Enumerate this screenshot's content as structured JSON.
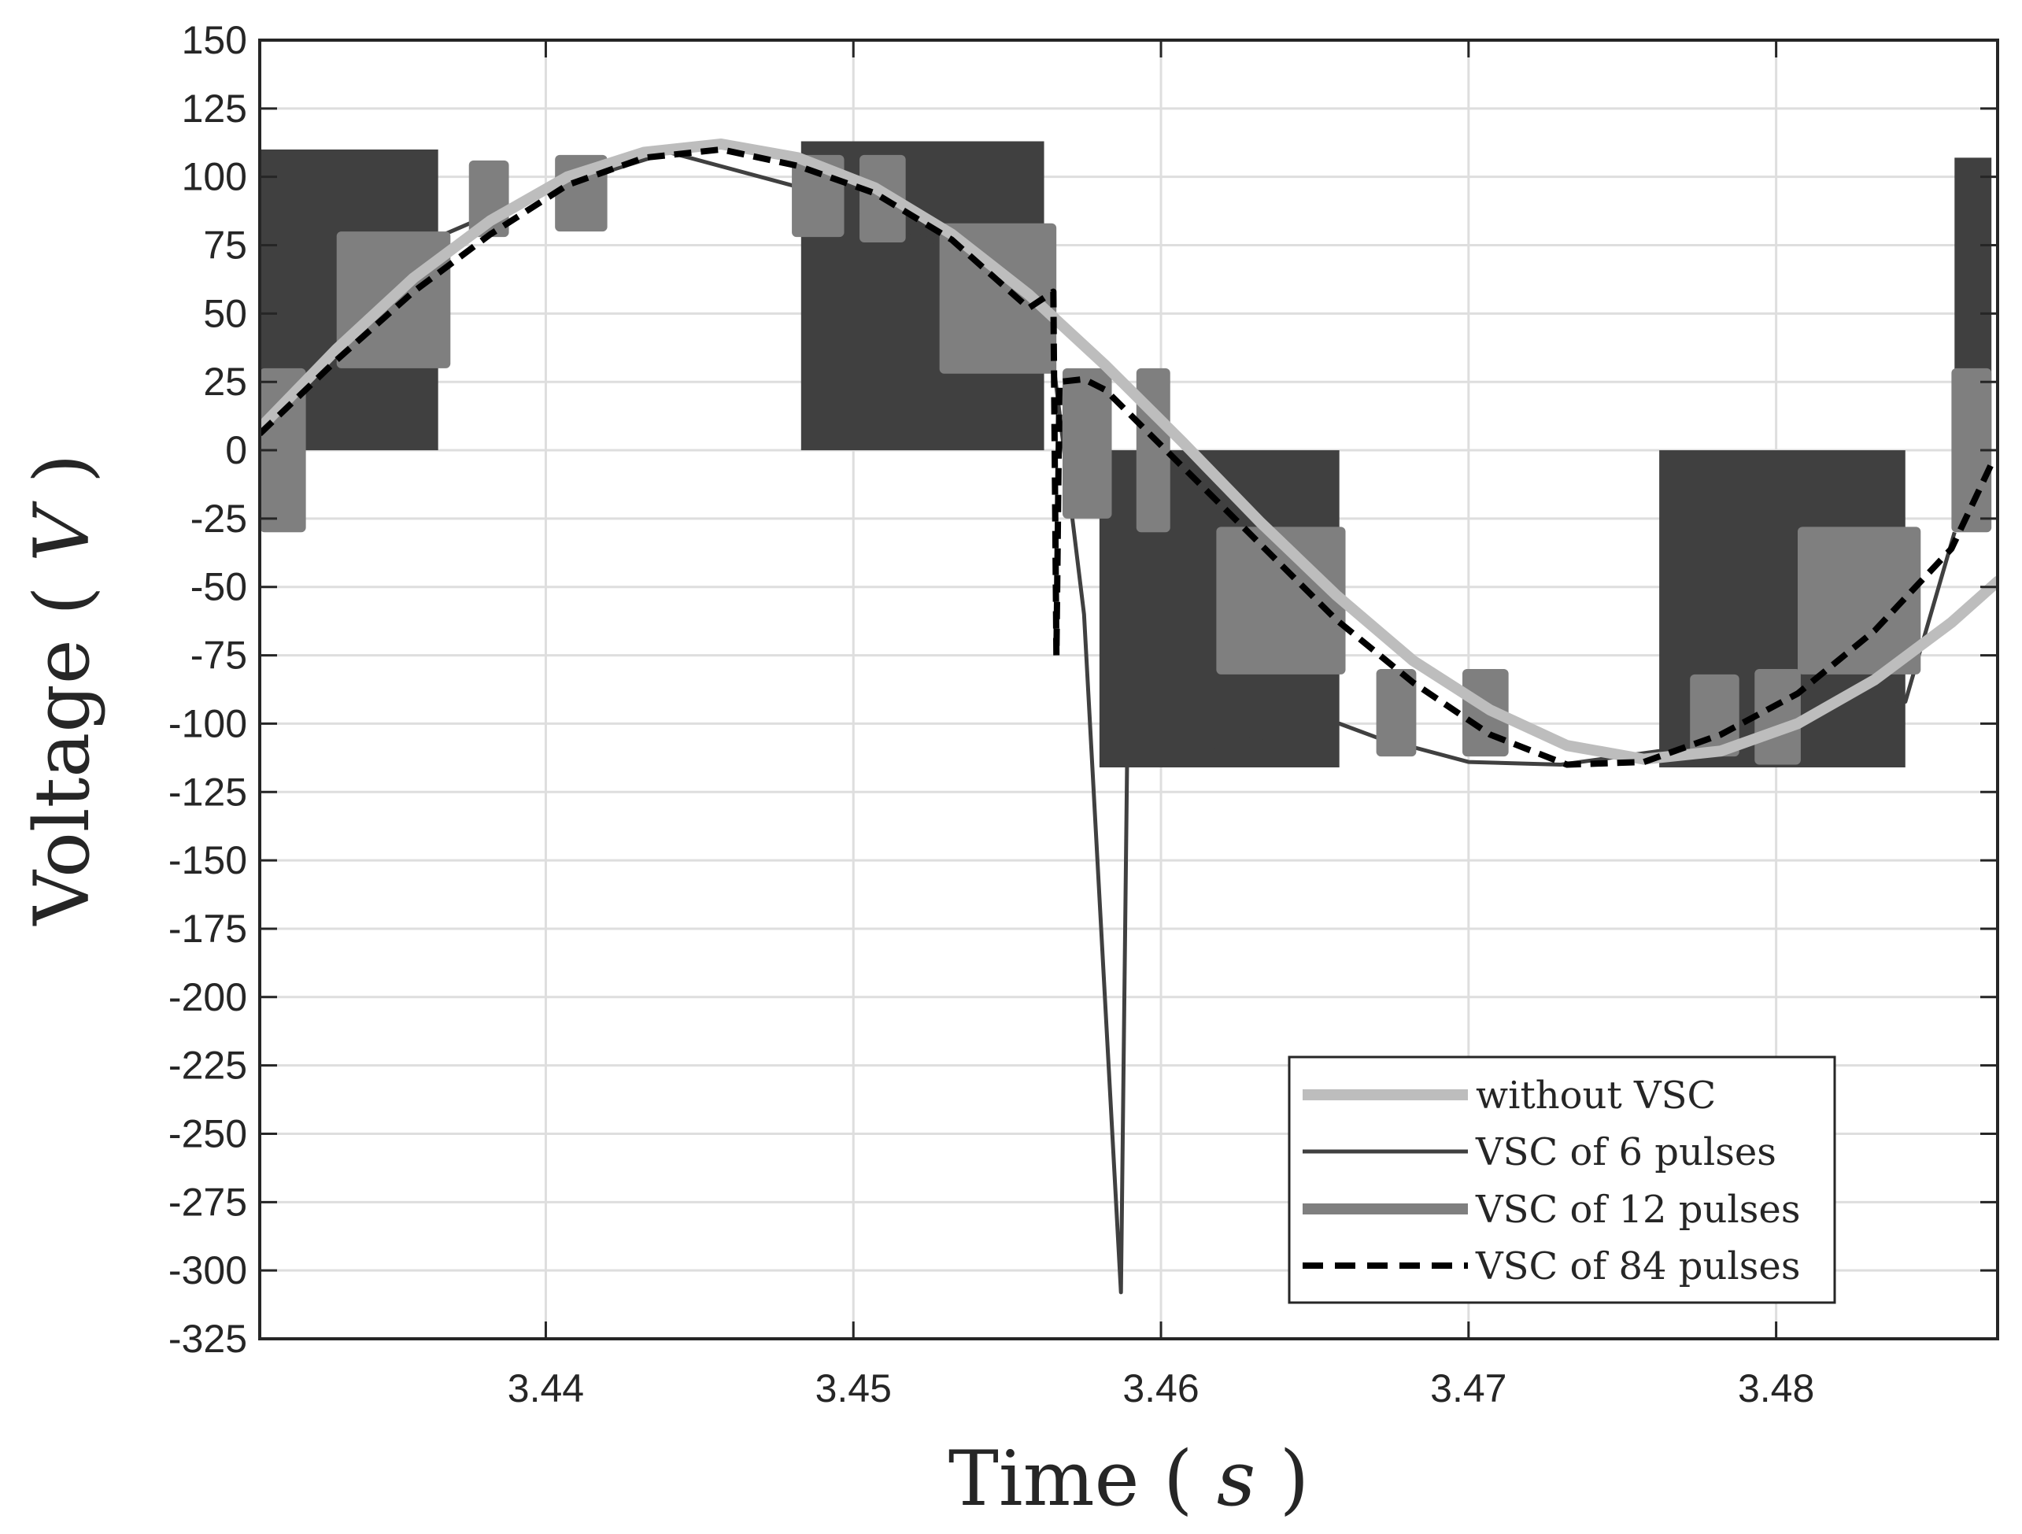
{
  "chart_data": {
    "type": "line",
    "xlabel": "Time",
    "xlabel_var": "s",
    "ylabel": "Voltage",
    "ylabel_var": "V",
    "xlim": [
      3.4307,
      3.4872
    ],
    "ylim": [
      -325,
      150
    ],
    "xticks": [
      3.44,
      3.45,
      3.46,
      3.47,
      3.48
    ],
    "xtick_labels": [
      "3.44",
      "3.45",
      "3.46",
      "3.47",
      "3.48"
    ],
    "yticks": [
      150,
      125,
      100,
      75,
      50,
      25,
      0,
      -25,
      -50,
      -75,
      -100,
      -125,
      -150,
      -175,
      -200,
      -225,
      -250,
      -275,
      -300,
      -325
    ],
    "ytick_labels": [
      "150",
      "125",
      "100",
      "75",
      "50",
      "25",
      "0",
      "-25",
      "-50",
      "-75",
      "-100",
      "-125",
      "-150",
      "-175",
      "-200",
      "-225",
      "-250",
      "-275",
      "-300",
      "-325"
    ],
    "grid": true,
    "legend_position": "bottom-right",
    "series": [
      {
        "name": "without VSC",
        "color": "#bdbdbd",
        "style": "solid-thick",
        "description": "sinusoid, amplitude ~112 V, peak near t=3.445 s, zero crossing near t=3.4585 s",
        "x": [
          3.4307,
          3.4332,
          3.4357,
          3.4382,
          3.4407,
          3.4432,
          3.4457,
          3.4482,
          3.4507,
          3.4532,
          3.4557,
          3.4582,
          3.4607,
          3.4632,
          3.4657,
          3.4682,
          3.4707,
          3.4732,
          3.4757,
          3.4782,
          3.4807,
          3.4832,
          3.4857,
          3.4872
        ],
        "y": [
          8,
          37,
          63,
          84,
          100,
          109,
          112,
          107,
          96,
          79,
          57,
          31,
          3,
          -26,
          -53,
          -77,
          -95,
          -108,
          -113,
          -110,
          -100,
          -84,
          -63,
          -48
        ]
      },
      {
        "name": "VSC of 6 pulses",
        "color": "#404040",
        "style": "solid-thin",
        "description": "six-pulse switched waveform with high-frequency switching bands and a spike to about -308 V",
        "bands": [
          {
            "t0": 3.4307,
            "t1": 3.4365,
            "ymin": 0,
            "ymax": 110
          },
          {
            "t0": 3.4483,
            "t1": 3.4562,
            "ymin": 0,
            "ymax": 113
          },
          {
            "t0": 3.458,
            "t1": 3.4658,
            "ymin": -116,
            "ymax": 0
          },
          {
            "t0": 3.4762,
            "t1": 3.4842,
            "ymin": -116,
            "ymax": 0
          },
          {
            "t0": 3.4858,
            "t1": 3.487,
            "ymin": 0,
            "ymax": 107
          }
        ],
        "x": [
          3.4365,
          3.44,
          3.444,
          3.4483,
          3.4562,
          3.4575,
          3.4587,
          3.4589,
          3.4658,
          3.467,
          3.47,
          3.473,
          3.4762,
          3.4842,
          3.4858
        ],
        "y": [
          78,
          95,
          109,
          96,
          60,
          -60,
          -308,
          -114,
          -100,
          -105,
          -114,
          -115,
          -110,
          -92,
          -30
        ]
      },
      {
        "name": "VSC of 12 pulses",
        "color": "#7f7f7f",
        "style": "solid-thick",
        "description": "twelve-pulse stepped waveform with switching blocks at intermediate levels",
        "bands": [
          {
            "t0": 3.4307,
            "t1": 3.4322,
            "ymin": -30,
            "ymax": 30
          },
          {
            "t0": 3.4332,
            "t1": 3.4369,
            "ymin": 30,
            "ymax": 80
          },
          {
            "t0": 3.4375,
            "t1": 3.4388,
            "ymin": 78,
            "ymax": 106
          },
          {
            "t0": 3.4403,
            "t1": 3.442,
            "ymin": 80,
            "ymax": 108
          },
          {
            "t0": 3.448,
            "t1": 3.4497,
            "ymin": 78,
            "ymax": 108
          },
          {
            "t0": 3.4502,
            "t1": 3.4517,
            "ymin": 76,
            "ymax": 108
          },
          {
            "t0": 3.4528,
            "t1": 3.4566,
            "ymin": 28,
            "ymax": 83
          },
          {
            "t0": 3.4568,
            "t1": 3.4584,
            "ymin": -25,
            "ymax": 30
          },
          {
            "t0": 3.4592,
            "t1": 3.4603,
            "ymin": -30,
            "ymax": 30
          },
          {
            "t0": 3.4618,
            "t1": 3.466,
            "ymin": -82,
            "ymax": -28
          },
          {
            "t0": 3.467,
            "t1": 3.4683,
            "ymin": -112,
            "ymax": -80
          },
          {
            "t0": 3.4698,
            "t1": 3.4713,
            "ymin": -112,
            "ymax": -80
          },
          {
            "t0": 3.4772,
            "t1": 3.4788,
            "ymin": -112,
            "ymax": -82
          },
          {
            "t0": 3.4793,
            "t1": 3.4808,
            "ymin": -115,
            "ymax": -80
          },
          {
            "t0": 3.4807,
            "t1": 3.4847,
            "ymin": -82,
            "ymax": -28
          },
          {
            "t0": 3.4857,
            "t1": 3.487,
            "ymin": -30,
            "ymax": 30
          }
        ]
      },
      {
        "name": "VSC of 84 pulses",
        "color": "#000000",
        "style": "dashed",
        "description": "84-pulse near-sinusoidal waveform with a transient drop to about -75 V near t=3.4565 s",
        "x": [
          3.4307,
          3.4332,
          3.4357,
          3.4382,
          3.4407,
          3.4432,
          3.4457,
          3.4482,
          3.4507,
          3.4532,
          3.4557,
          3.4565,
          3.4566,
          3.4567,
          3.4575,
          3.4582,
          3.4607,
          3.4632,
          3.4657,
          3.4682,
          3.4707,
          3.4732,
          3.4757,
          3.4782,
          3.4807,
          3.4832,
          3.4857,
          3.487
        ],
        "y": [
          6,
          33,
          58,
          79,
          97,
          107,
          110,
          104,
          94,
          77,
          52,
          58,
          -75,
          25,
          26,
          22,
          -6,
          -34,
          -62,
          -85,
          -104,
          -115,
          -114,
          -104,
          -89,
          -66,
          -36,
          -5
        ]
      }
    ]
  }
}
